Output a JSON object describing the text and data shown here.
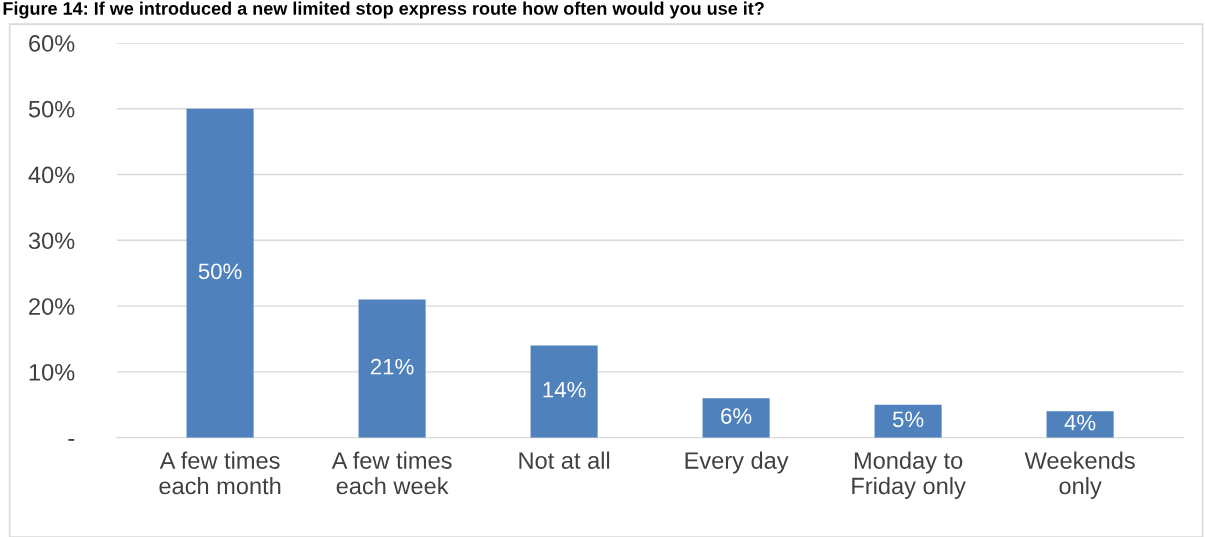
{
  "chart_data": {
    "type": "bar",
    "title": "Figure 14: If we introduced a new limited stop express route how often would you use it?",
    "categories": [
      "A few times\neach month",
      "A few times\neach week",
      "Not at all",
      "Every day",
      "Monday to\nFriday only",
      "Weekends\nonly"
    ],
    "values": [
      50,
      21,
      14,
      6,
      5,
      4
    ],
    "color": "#4f81bd",
    "value_labels": [
      "50%",
      "21%",
      "14%",
      "6%",
      "5%",
      "4%"
    ],
    "ylim": [
      0,
      60
    ],
    "yticks": [
      {
        "value": 0,
        "label": "-"
      },
      {
        "value": 10,
        "label": "10%"
      },
      {
        "value": 20,
        "label": "20%"
      },
      {
        "value": 30,
        "label": "30%"
      },
      {
        "value": 40,
        "label": "40%"
      },
      {
        "value": 50,
        "label": "50%"
      },
      {
        "value": 60,
        "label": "60%"
      }
    ],
    "grid": "y",
    "legend": false
  }
}
